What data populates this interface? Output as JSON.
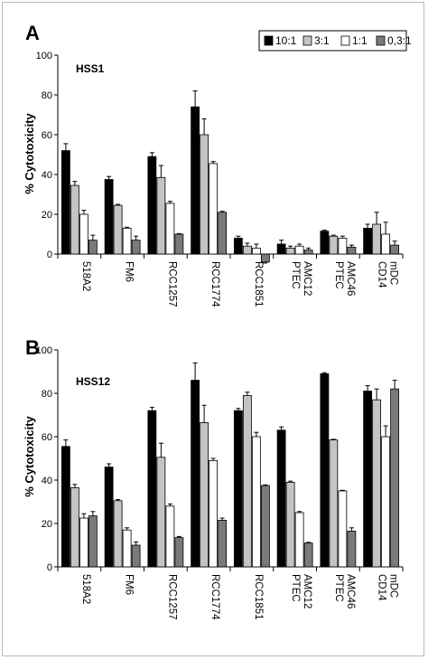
{
  "legend": {
    "entries": [
      {
        "label": "10:1",
        "color": "#000000"
      },
      {
        "label": "3:1",
        "color": "#c4c4c4"
      },
      {
        "label": "1:1",
        "color": "#ffffff"
      },
      {
        "label": "0,3:1",
        "color": "#7a7a7a"
      }
    ]
  },
  "chart_data": [
    {
      "type": "bar",
      "panel_letter": "A",
      "panel_tag": "HSS1",
      "ylabel": "% Cytotoxicity",
      "ylim": [
        0,
        100
      ],
      "yticks": [
        0,
        20,
        40,
        60,
        80,
        100
      ],
      "categories": [
        "518A2",
        "FM6",
        "RCC1257",
        "RCC1774",
        "RCC1851",
        "PTEC AMC12",
        "PTEC AMC46",
        "CD14 mDC"
      ],
      "series": [
        {
          "name": "10:1",
          "values": [
            52,
            37.5,
            49,
            74,
            8,
            5,
            11.5,
            13
          ],
          "errors": [
            3.5,
            1.5,
            2,
            8,
            1,
            2,
            0.5,
            2
          ]
        },
        {
          "name": "3:1",
          "values": [
            34.5,
            24.5,
            38.5,
            60,
            4,
            3,
            9,
            15
          ],
          "errors": [
            2,
            0.5,
            6,
            8,
            1.5,
            1,
            0.5,
            6
          ]
        },
        {
          "name": "1:1",
          "values": [
            20,
            13,
            25.5,
            45.5,
            3,
            4,
            8,
            10
          ],
          "errors": [
            2,
            0.5,
            1,
            1,
            2,
            1,
            1,
            6
          ]
        },
        {
          "name": "0,3:1",
          "values": [
            7,
            7,
            10,
            21,
            -4,
            2,
            3.5,
            4.5
          ],
          "errors": [
            2.5,
            2,
            0.3,
            0.5,
            0.5,
            1,
            1,
            2
          ]
        }
      ]
    },
    {
      "type": "bar",
      "panel_letter": "B",
      "panel_tag": "HSS12",
      "ylabel": "% Cytotoxicity",
      "ylim": [
        0,
        100
      ],
      "yticks": [
        0,
        20,
        40,
        60,
        80,
        100
      ],
      "categories": [
        "518A2",
        "FM6",
        "RCC1257",
        "RCC1774",
        "RCC1851",
        "PTEC AMC12",
        "PTEC AMC46",
        "CD14 mDC"
      ],
      "series": [
        {
          "name": "10:1",
          "values": [
            55.5,
            46,
            72,
            86,
            72,
            63,
            89,
            81
          ],
          "errors": [
            3,
            1.5,
            1.5,
            8,
            1,
            1.5,
            0.5,
            2.5
          ]
        },
        {
          "name": "3:1",
          "values": [
            36.5,
            30.5,
            50.5,
            66.5,
            79,
            39,
            58.5,
            77
          ],
          "errors": [
            1.5,
            0.5,
            6.5,
            8,
            1.5,
            0.5,
            0.3,
            5
          ]
        },
        {
          "name": "1:1",
          "values": [
            22.5,
            17,
            28,
            49,
            60,
            25,
            35,
            60
          ],
          "errors": [
            2,
            1,
            1,
            1,
            2,
            0.5,
            0.3,
            5
          ]
        },
        {
          "name": "0,3:1",
          "values": [
            23.5,
            10,
            13.5,
            21.5,
            37.5,
            11,
            16.5,
            82
          ],
          "errors": [
            2,
            1.5,
            0.5,
            1,
            0.3,
            0.3,
            1.5,
            4
          ]
        }
      ]
    }
  ]
}
